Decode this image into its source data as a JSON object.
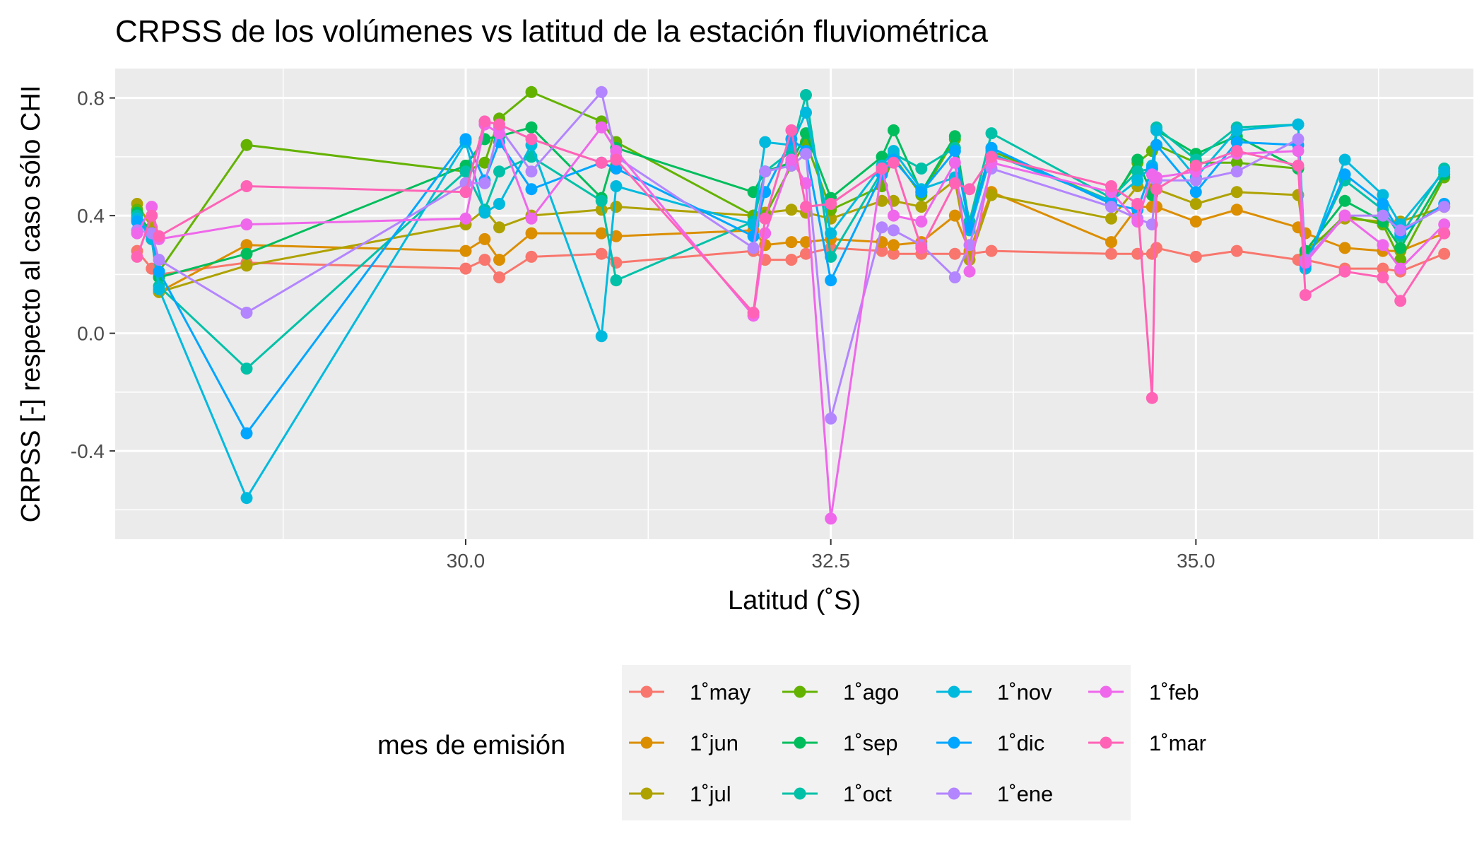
{
  "chart_data": {
    "type": "line",
    "title": "CRPSS de los volúmenes vs latitud de la estación fluviométrica",
    "xlabel": "Latitud (˚S)",
    "ylabel": "CRPSS [-] respecto al caso sólo CHI",
    "xlim": [
      27.6,
      36.9
    ],
    "ylim": [
      -0.7,
      0.9
    ],
    "x_ticks": [
      30.0,
      32.5,
      35.0
    ],
    "x_tick_labels": [
      "30.0",
      "32.5",
      "35.0"
    ],
    "y_ticks": [
      -0.4,
      0.0,
      0.4,
      0.8
    ],
    "y_tick_labels": [
      "-0.4",
      "0.0",
      "0.4",
      "0.8"
    ],
    "grid": true,
    "legend": {
      "title": "mes de emisión",
      "placement": "bottom"
    },
    "x": [
      27.75,
      27.85,
      27.9,
      28.5,
      30.0,
      30.13,
      30.23,
      30.45,
      30.93,
      31.03,
      31.97,
      32.05,
      32.23,
      32.33,
      32.5,
      32.85,
      32.93,
      33.12,
      33.35,
      33.45,
      33.6,
      34.42,
      34.6,
      34.7,
      34.73,
      35.0,
      35.28,
      35.7,
      35.75,
      36.02,
      36.28,
      36.4,
      36.7
    ],
    "series": [
      {
        "name": "1˚may",
        "color": "#F8766D",
        "values": [
          0.28,
          0.22,
          0.2,
          0.24,
          0.22,
          0.25,
          0.19,
          0.26,
          0.27,
          0.24,
          0.28,
          0.25,
          0.25,
          0.27,
          0.29,
          0.28,
          0.27,
          0.27,
          0.27,
          0.27,
          0.28,
          0.27,
          0.27,
          0.27,
          0.29,
          0.26,
          0.28,
          0.25,
          0.25,
          0.22,
          0.22,
          0.21,
          0.27
        ]
      },
      {
        "name": "1˚jun",
        "color": "#DB8E00",
        "values": [
          0.39,
          0.32,
          0.14,
          0.3,
          0.28,
          0.32,
          0.25,
          0.34,
          0.34,
          0.33,
          0.35,
          0.3,
          0.31,
          0.31,
          0.32,
          0.31,
          0.3,
          0.31,
          0.4,
          0.28,
          0.48,
          0.31,
          0.43,
          0.43,
          0.43,
          0.38,
          0.42,
          0.36,
          0.34,
          0.29,
          0.28,
          0.28,
          0.34
        ]
      },
      {
        "name": "1˚jul",
        "color": "#AEA200",
        "values": [
          0.44,
          0.36,
          0.14,
          0.23,
          0.37,
          0.42,
          0.36,
          0.4,
          0.42,
          0.43,
          0.4,
          0.41,
          0.42,
          0.41,
          0.39,
          0.45,
          0.45,
          0.43,
          0.52,
          0.25,
          0.47,
          0.39,
          0.5,
          0.49,
          0.49,
          0.44,
          0.48,
          0.47,
          0.28,
          0.39,
          0.38,
          0.38,
          0.43
        ]
      },
      {
        "name": "1˚ago",
        "color": "#64B200",
        "values": [
          0.42,
          0.33,
          0.21,
          0.64,
          0.55,
          0.58,
          0.73,
          0.82,
          0.72,
          0.65,
          0.4,
          0.4,
          0.57,
          0.65,
          0.42,
          0.5,
          0.6,
          0.47,
          0.66,
          0.36,
          0.62,
          0.45,
          0.58,
          0.62,
          0.64,
          0.58,
          0.58,
          0.56,
          0.27,
          0.4,
          0.37,
          0.25,
          0.53
        ]
      },
      {
        "name": "1˚sep",
        "color": "#00BD5C",
        "values": [
          0.41,
          0.34,
          0.19,
          0.27,
          0.57,
          0.66,
          0.67,
          0.7,
          0.46,
          0.63,
          0.48,
          0.55,
          0.58,
          0.68,
          0.46,
          0.6,
          0.69,
          0.48,
          0.67,
          0.37,
          0.63,
          0.44,
          0.59,
          0.47,
          0.69,
          0.61,
          0.67,
          0.56,
          0.28,
          0.45,
          0.38,
          0.29,
          0.54
        ]
      },
      {
        "name": "1˚oct",
        "color": "#00C1A7",
        "values": [
          0.4,
          0.33,
          0.16,
          -0.12,
          0.55,
          0.42,
          0.55,
          0.6,
          0.45,
          0.18,
          0.38,
          0.55,
          0.62,
          0.81,
          0.26,
          0.55,
          0.61,
          0.56,
          0.63,
          0.38,
          0.68,
          0.46,
          0.55,
          0.56,
          0.7,
          0.59,
          0.7,
          0.71,
          0.24,
          0.52,
          0.42,
          0.33,
          0.56
        ]
      },
      {
        "name": "1˚nov",
        "color": "#00BADE",
        "values": [
          0.39,
          0.32,
          0.15,
          -0.56,
          0.65,
          0.41,
          0.44,
          0.64,
          -0.01,
          0.5,
          0.37,
          0.65,
          0.64,
          0.75,
          0.34,
          0.57,
          0.62,
          0.49,
          0.53,
          0.35,
          0.61,
          0.45,
          0.52,
          0.57,
          0.69,
          0.53,
          0.69,
          0.71,
          0.22,
          0.59,
          0.47,
          0.37,
          0.55
        ]
      },
      {
        "name": "1˚dic",
        "color": "#00A6FF",
        "values": [
          0.38,
          0.34,
          0.21,
          -0.34,
          0.66,
          0.52,
          0.65,
          0.49,
          0.58,
          0.56,
          0.33,
          0.48,
          0.66,
          0.62,
          0.18,
          0.54,
          0.59,
          0.48,
          0.62,
          0.36,
          0.63,
          0.44,
          0.42,
          0.56,
          0.64,
          0.48,
          0.65,
          0.64,
          0.23,
          0.54,
          0.44,
          0.34,
          0.44
        ]
      },
      {
        "name": "1˚ene",
        "color": "#B385FF",
        "values": [
          0.35,
          0.34,
          0.25,
          0.07,
          0.51,
          0.51,
          0.7,
          0.55,
          0.82,
          0.6,
          0.29,
          0.55,
          0.57,
          0.61,
          -0.29,
          0.36,
          0.35,
          0.3,
          0.19,
          0.3,
          0.56,
          0.43,
          0.39,
          0.37,
          0.52,
          0.52,
          0.55,
          0.66,
          0.25,
          0.4,
          0.4,
          0.35,
          0.43
        ]
      },
      {
        "name": "1˚feb",
        "color": "#EF67EB",
        "values": [
          0.34,
          0.43,
          0.32,
          0.37,
          0.39,
          0.71,
          0.68,
          0.39,
          0.7,
          0.62,
          0.06,
          0.34,
          0.59,
          0.51,
          -0.63,
          0.56,
          0.4,
          0.38,
          0.58,
          0.21,
          0.58,
          0.48,
          0.38,
          0.54,
          0.53,
          0.55,
          0.61,
          0.62,
          0.24,
          0.4,
          0.3,
          0.22,
          0.37
        ]
      },
      {
        "name": "1˚mar",
        "color": "#FF63B6",
        "values": [
          0.26,
          0.4,
          0.33,
          0.5,
          0.48,
          0.72,
          0.71,
          0.66,
          0.58,
          0.59,
          0.07,
          0.39,
          0.69,
          0.43,
          0.44,
          0.56,
          0.58,
          0.29,
          0.51,
          0.49,
          0.6,
          0.5,
          0.44,
          -0.22,
          0.49,
          0.57,
          0.62,
          0.57,
          0.13,
          0.21,
          0.19,
          0.11,
          0.34
        ]
      }
    ]
  }
}
